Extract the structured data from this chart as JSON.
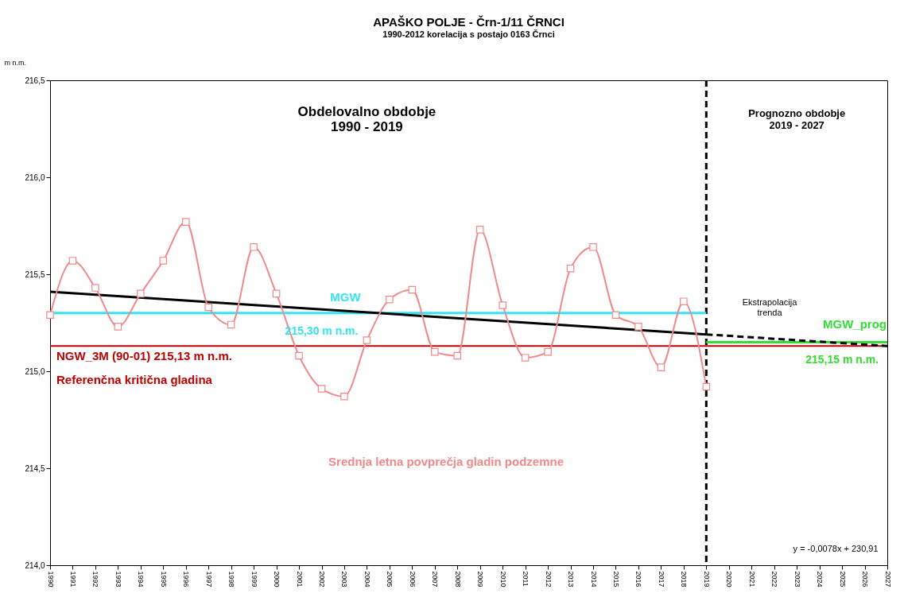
{
  "chart_data": {
    "type": "line",
    "title": "APAŠKO POLJE - Črn-1/11 ČRNCI",
    "subtitle": "1990-2012 korelacija s postajo 0163 Črnci",
    "ylabel": "m n.m.",
    "xlim": [
      1990,
      2027
    ],
    "xticks": [
      1990,
      1991,
      1992,
      1993,
      1994,
      1995,
      1996,
      1997,
      1998,
      1999,
      2000,
      2001,
      2002,
      2003,
      2004,
      2005,
      2006,
      2007,
      2008,
      2009,
      2010,
      2011,
      2012,
      2013,
      2014,
      2015,
      2016,
      2017,
      2018,
      2019,
      2020,
      2021,
      2022,
      2023,
      2024,
      2025,
      2026,
      2027
    ],
    "ylim": [
      214.0,
      216.5
    ],
    "yticks": [
      {
        "value": 214.0,
        "label": "214,0"
      },
      {
        "value": 214.5,
        "label": "214,5"
      },
      {
        "value": 215.0,
        "label": "215,0"
      },
      {
        "value": 215.5,
        "label": "215,5"
      },
      {
        "value": 216.0,
        "label": "216,0"
      },
      {
        "value": 216.5,
        "label": "216,5"
      }
    ],
    "grid": false,
    "series": [
      {
        "type": "line",
        "name": "MGW",
        "color": "#33e5f0",
        "x": [
          1990,
          2019
        ],
        "values": [
          215.3,
          215.3
        ]
      },
      {
        "type": "line",
        "name": "MGW_prog",
        "color": "#33dd33",
        "x": [
          2019,
          2027
        ],
        "values": [
          215.15,
          215.15
        ]
      },
      {
        "type": "line",
        "color": "#000000",
        "x": [
          1990,
          2019
        ],
        "values": [
          215.41,
          215.19
        ]
      },
      {
        "type": "line",
        "color": "#000000",
        "line_style": "dashed",
        "x": [
          2019,
          2027
        ],
        "values": [
          215.19,
          215.13
        ]
      },
      {
        "type": "line",
        "name": "Srednja letna povprečja gladin podzemne",
        "color": "#f08a8a",
        "marker": "square",
        "x": [
          1990,
          1991,
          1992,
          1993,
          1994,
          1995,
          1996,
          1997,
          1998,
          1999,
          2000,
          2001,
          2002,
          2003,
          2004,
          2005,
          2006,
          2007,
          2008,
          2009,
          2010,
          2011,
          2012,
          2013,
          2014,
          2015,
          2016,
          2017,
          2018,
          2019
        ],
        "values": [
          215.29,
          215.57,
          215.43,
          215.23,
          215.4,
          215.57,
          215.77,
          215.33,
          215.24,
          215.64,
          215.4,
          215.08,
          214.91,
          214.87,
          215.16,
          215.37,
          215.42,
          215.1,
          215.08,
          215.73,
          215.34,
          215.07,
          215.1,
          215.53,
          215.64,
          215.29,
          215.23,
          215.02,
          215.36,
          214.92
        ]
      }
    ],
    "ref_lines": [
      {
        "axis": "y",
        "value": 215.13,
        "label": "NGW_3M  (90-01) 215,13 m n.m.\nReferenčna kritična gladina",
        "color": "#c00000"
      },
      {
        "axis": "x",
        "value": 2019,
        "color": "#000000",
        "line_style": "dashed"
      }
    ],
    "annotations": [
      "Obdelovalno obdobje\n1990 - 2019",
      "Prognozno obdobje\n2019 - 2027",
      "Ekstrapolacija\ntrenda",
      "y = -0,0078x + 230,91",
      {
        "text": "215,30 m n.m.",
        "x": 2002,
        "y": 215.3
      },
      {
        "text": "215,15 m n.m.",
        "x": 2025,
        "y": 215.15
      }
    ]
  }
}
